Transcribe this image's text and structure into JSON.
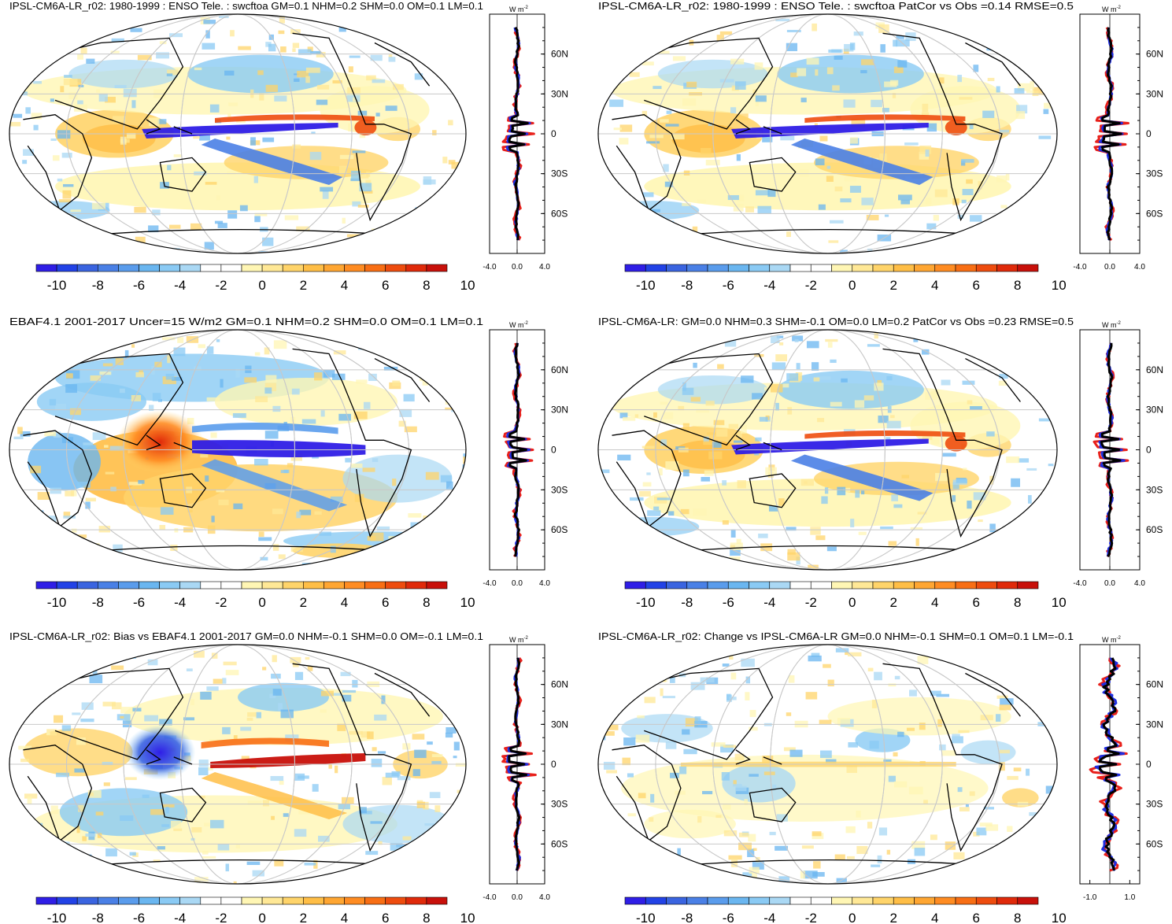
{
  "figure": {
    "unit_label": "W m",
    "unit_exponent": "-2",
    "lat_labels": [
      "60N",
      "30N",
      "0",
      "30S",
      "60S"
    ],
    "lat_values": [
      60,
      30,
      0,
      -30,
      -60
    ],
    "colorbar": {
      "labels": [
        "-10",
        "-8",
        "-6",
        "-4",
        "-2",
        "0",
        "2",
        "4",
        "6",
        "8",
        "10"
      ],
      "colors": [
        "#2f1ee6",
        "#2242e6",
        "#3a64e0",
        "#4a80e6",
        "#5a9cec",
        "#6ab6f0",
        "#8acaf4",
        "#aad8f4",
        "#ffffff",
        "#ffffff",
        "#fff6b4",
        "#ffe896",
        "#ffd46a",
        "#ffbe46",
        "#ffa632",
        "#ff8c22",
        "#f86e14",
        "#ee4c0e",
        "#e02a0a",
        "#c8100a"
      ]
    }
  },
  "panels": [
    {
      "title": "IPSL-CM6A-LR_r02: 1980-1999 : ENSO Tele. : swcftoa GM=0.1 NHM=0.2 SHM=0.0 OM=0.1 LM=0.1",
      "pattern": "model",
      "xticks": [
        "-4.0",
        "0.0",
        "4.0"
      ],
      "xrange": [
        -4,
        4
      ]
    },
    {
      "title": "IPSL-CM6A-LR_r02: 1980-1999 : ENSO Tele. : swcftoa PatCor vs Obs =0.14 RMSE=0.5",
      "pattern": "model",
      "xticks": [
        "-4.0",
        "0.0",
        "4.0"
      ],
      "xrange": [
        -4,
        4
      ]
    },
    {
      "title": "EBAF4.1 2001-2017 Uncer=15 W/m2 GM=0.1 NHM=0.2 SHM=0.0 OM=0.1 LM=0.1",
      "pattern": "obs",
      "xticks": [
        "-4.0",
        "0.0",
        "4.0"
      ],
      "xrange": [
        -4,
        4
      ]
    },
    {
      "title": "IPSL-CM6A-LR: GM=0.0 NHM=0.3 SHM=-0.1 OM=0.0 LM=0.2 PatCor vs Obs =0.23 RMSE=0.5",
      "pattern": "model",
      "xticks": [
        "-4.0",
        "0.0",
        "4.0"
      ],
      "xrange": [
        -4,
        4
      ]
    },
    {
      "title": "IPSL-CM6A-LR_r02: Bias vs EBAF4.1 2001-2017 GM=0.0 NHM=-0.1 SHM=0.0 OM=-0.1 LM=0.1",
      "pattern": "bias",
      "xticks": [
        "-4.0",
        "0.0",
        "4.0"
      ],
      "xrange": [
        -4,
        4
      ]
    },
    {
      "title": "IPSL-CM6A-LR_r02: Change vs IPSL-CM6A-LR GM=0.0 NHM=-0.1 SHM=0.1 OM=0.1 LM=-0.1",
      "pattern": "change",
      "xticks": [
        "-1.0",
        "1.0"
      ],
      "xtick_values": [
        -1,
        1
      ],
      "xrange": [
        -1.5,
        1.5
      ]
    }
  ]
}
